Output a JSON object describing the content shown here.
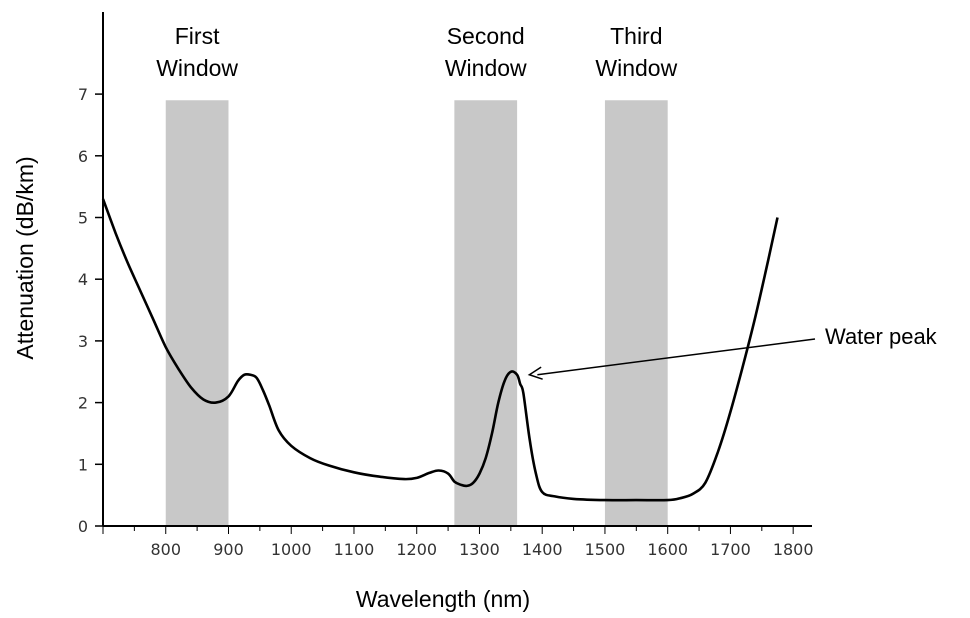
{
  "chart_data": {
    "type": "line",
    "title": "",
    "xlabel": "Wavelength (nm)",
    "ylabel": "Attenuation (dB/km)",
    "xlim": [
      700,
      1830
    ],
    "ylim": [
      0,
      7.6
    ],
    "xticks": [
      800,
      900,
      1000,
      1100,
      1200,
      1300,
      1400,
      1500,
      1600,
      1700,
      1800
    ],
    "yticks": [
      0,
      1,
      2,
      3,
      4,
      5,
      6,
      7
    ],
    "grid": false,
    "series": [
      {
        "color": "#000000",
        "x": [
          700,
          720,
          740,
          760,
          780,
          800,
          820,
          840,
          860,
          880,
          900,
          915,
          925,
          935,
          945,
          955,
          965,
          980,
          1000,
          1030,
          1060,
          1100,
          1140,
          1180,
          1200,
          1220,
          1235,
          1250,
          1260,
          1270,
          1280,
          1290,
          1300,
          1310,
          1320,
          1330,
          1340,
          1350,
          1360,
          1365,
          1370,
          1380,
          1390,
          1400,
          1420,
          1450,
          1500,
          1550,
          1600,
          1620,
          1640,
          1660,
          1680,
          1700,
          1720,
          1740,
          1760,
          1775
        ],
        "y": [
          5.3,
          4.75,
          4.25,
          3.8,
          3.35,
          2.9,
          2.55,
          2.25,
          2.05,
          2.0,
          2.1,
          2.35,
          2.45,
          2.45,
          2.4,
          2.2,
          1.95,
          1.55,
          1.3,
          1.1,
          0.98,
          0.87,
          0.8,
          0.76,
          0.78,
          0.86,
          0.9,
          0.85,
          0.72,
          0.67,
          0.65,
          0.7,
          0.85,
          1.1,
          1.5,
          2.0,
          2.35,
          2.5,
          2.45,
          2.3,
          2.15,
          1.4,
          0.85,
          0.55,
          0.48,
          0.44,
          0.42,
          0.42,
          0.42,
          0.45,
          0.52,
          0.7,
          1.2,
          1.85,
          2.6,
          3.4,
          4.3,
          5.0
        ]
      }
    ],
    "bands": [
      {
        "label": [
          "First",
          "Window"
        ],
        "x0": 800,
        "x1": 900,
        "color": "#c8c8c8"
      },
      {
        "label": [
          "Second",
          "Window"
        ],
        "x0": 1260,
        "x1": 1360,
        "color": "#c8c8c8"
      },
      {
        "label": [
          "Third",
          "Window"
        ],
        "x0": 1500,
        "x1": 1600,
        "color": "#c8c8c8"
      }
    ],
    "annotations": [
      {
        "text": "Water peak",
        "x": 1370,
        "y": 2.5
      }
    ]
  }
}
